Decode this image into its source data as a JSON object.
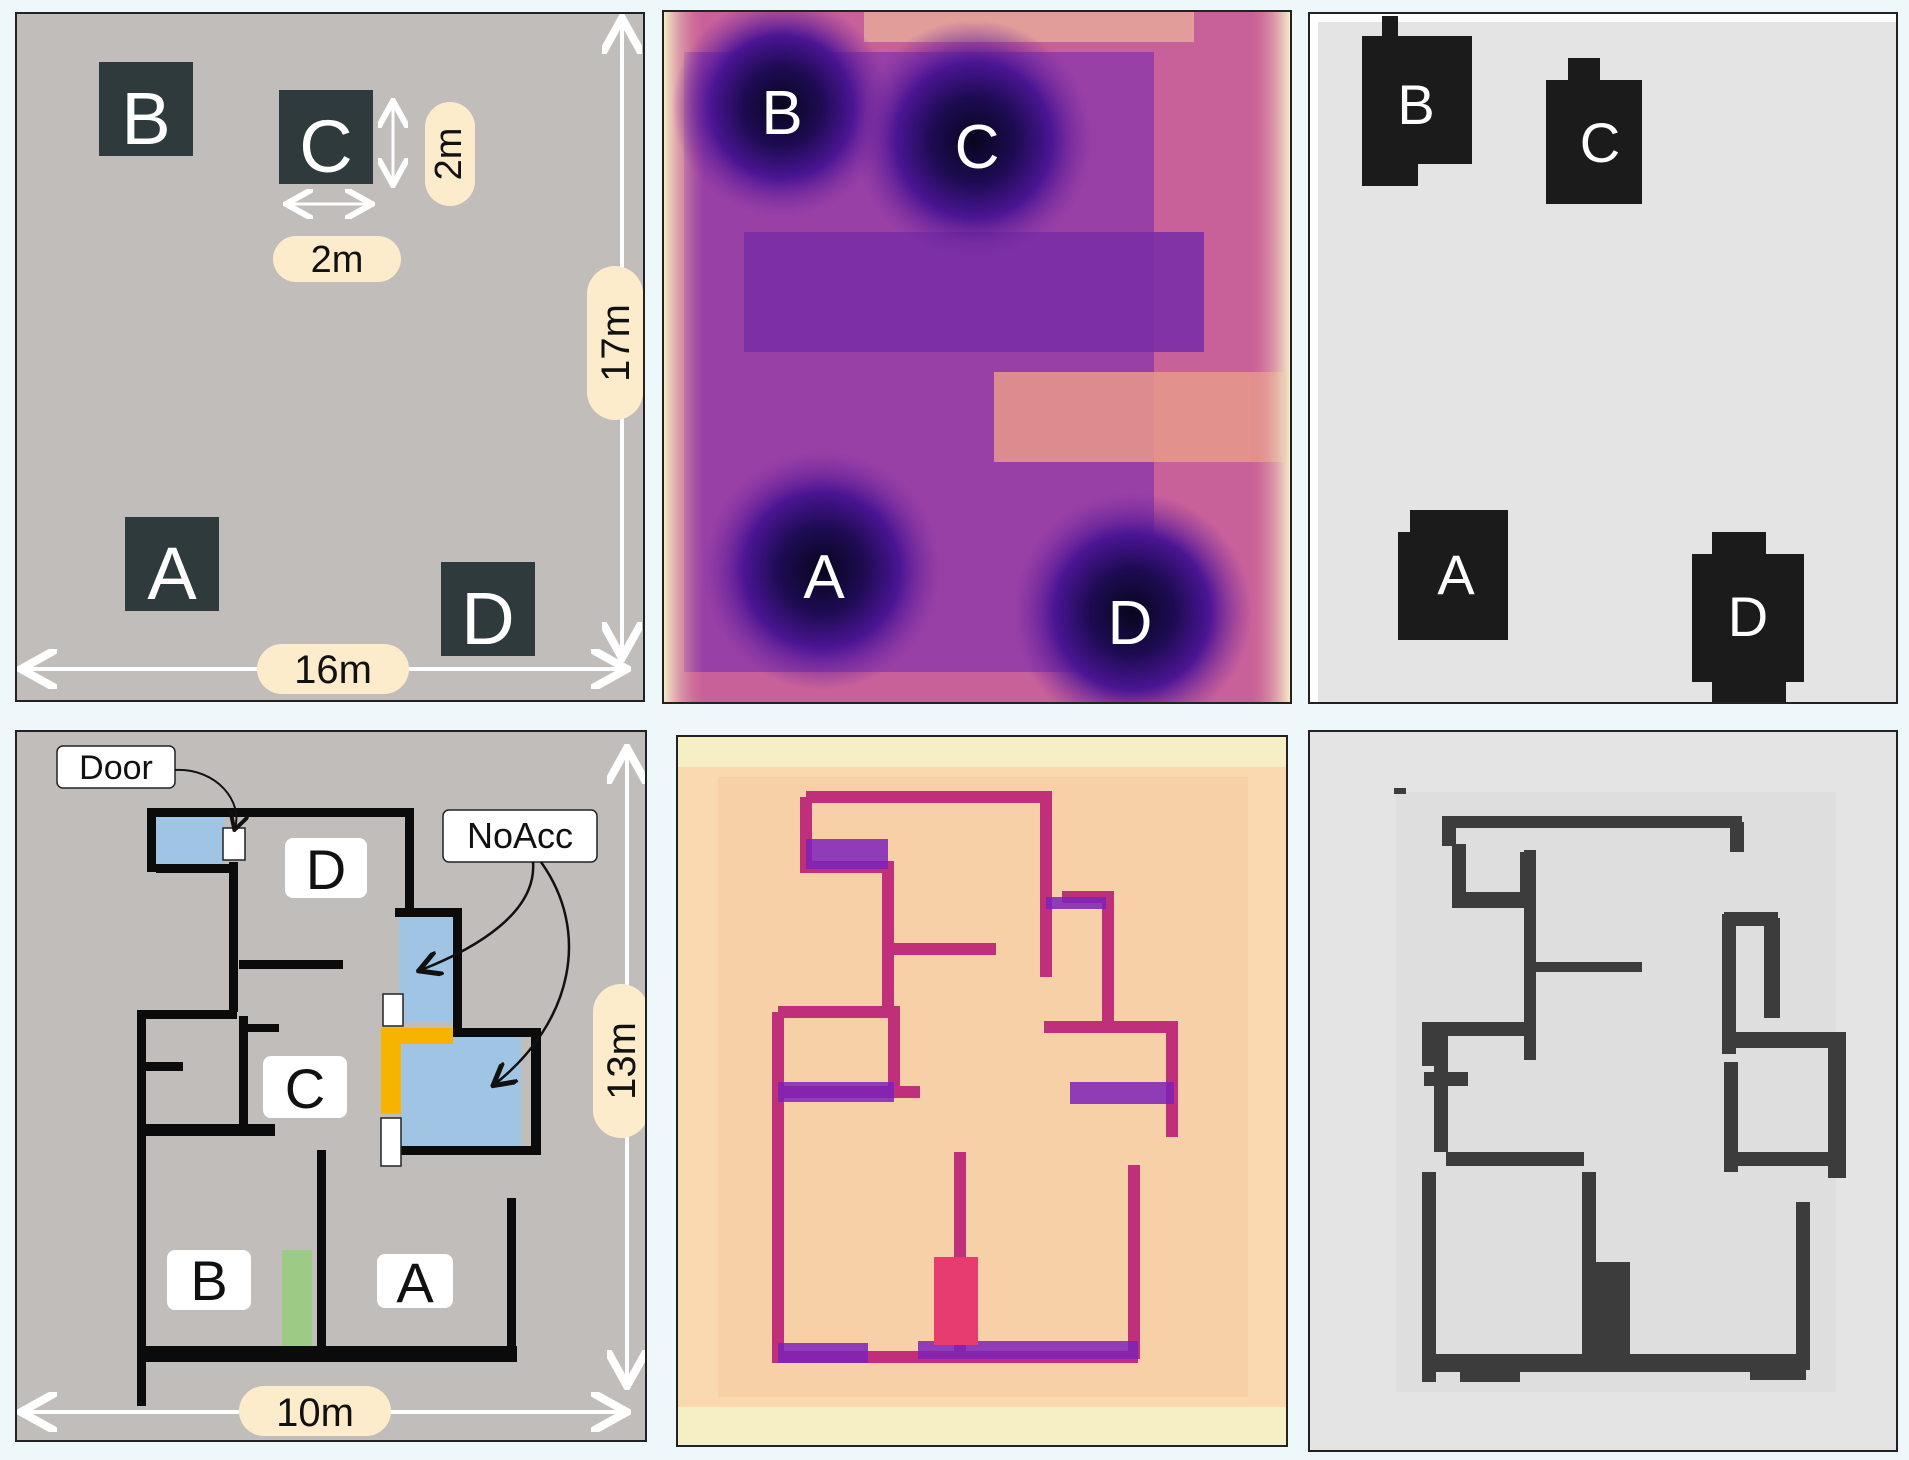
{
  "top_row": {
    "layout": {
      "blocks": [
        "A",
        "B",
        "C",
        "D"
      ],
      "block_size_width": "2m",
      "block_size_height": "2m",
      "room_width": "16m",
      "room_height": "17m"
    },
    "heatmap": {
      "labels": [
        "B",
        "C",
        "A",
        "D"
      ]
    },
    "occupancy": {
      "labels": [
        "B",
        "C",
        "A",
        "D"
      ]
    }
  },
  "bottom_row": {
    "layout": {
      "rooms": [
        "D",
        "C",
        "B",
        "A"
      ],
      "door_label": "Door",
      "noacc_label": "NoAcc",
      "room_width": "10m",
      "room_height": "13m"
    }
  },
  "colors": {
    "floor": "#c1bdbb",
    "block": "#2f3a3d",
    "noacc": "#a0c4e4",
    "door": "#ffffff",
    "orange": "#f6b400",
    "green": "#9ccb86",
    "occupied": "#1b1b1b",
    "free": "#e4e4e4",
    "wall_map": "#3c3c3c"
  }
}
